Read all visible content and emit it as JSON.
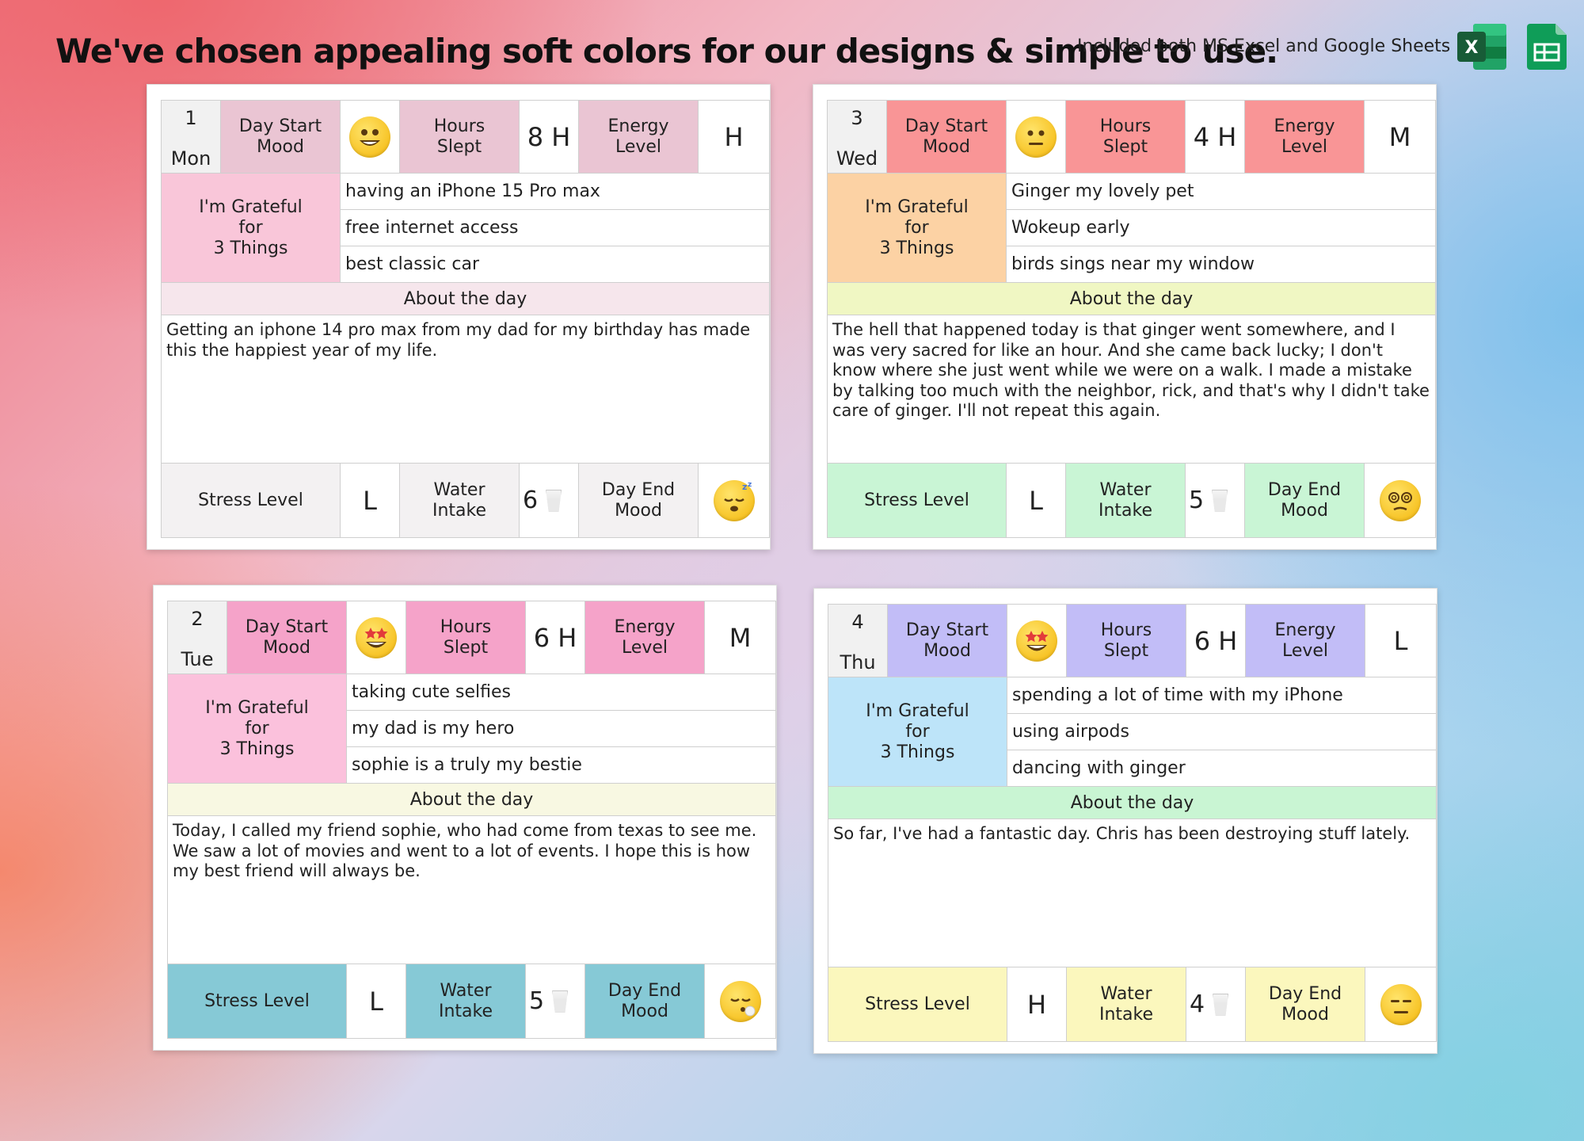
{
  "headline": "We've chosen appealing soft colors for our designs & simple to use.",
  "included_text": "Included both MS Excel and Google Sheets",
  "icons": {
    "excel": "microsoft-excel-icon",
    "sheets": "google-sheets-icon"
  },
  "labels": {
    "day_start_mood": "Day Start\nMood",
    "hours_slept": "Hours\nSlept",
    "energy_level": "Energy\nLevel",
    "grateful": "I'm Grateful\nfor\n3 Things",
    "about": "About the day",
    "stress_level": "Stress Level",
    "water_intake": "Water\nIntake",
    "day_end_mood": "Day End\nMood"
  },
  "cards": [
    {
      "day_number": "1",
      "day_name": "Mon",
      "start_mood": "smiling-face",
      "hours_slept": "8 H",
      "energy": "H",
      "grateful": [
        "having an iPhone 15 Pro max",
        "free internet access",
        "best classic car"
      ],
      "about_text": "Getting an iphone 14 pro max from my dad for my birthday has made this the happiest year of my life.",
      "stress": "L",
      "water": "6",
      "end_mood": "sleeping-face",
      "colors": {
        "header": "#eac5d3",
        "grateful": "#f9c6d9",
        "about": "#f6e6ec",
        "footer": "#f3f1f2"
      }
    },
    {
      "day_number": "3",
      "day_name": "Wed",
      "start_mood": "neutral-face",
      "hours_slept": "4 H",
      "energy": "M",
      "grateful": [
        "Ginger my lovely pet",
        "Wokeup early",
        "birds sings near my window"
      ],
      "about_text": "The hell that happened today is that ginger went somewhere, and I was very sacred for like an hour. And she came back lucky; I don't know where she just went while we were on a walk. I made a mistake by talking too much with the neighbor, rick, and that's why I didn't take care of ginger. I'll not repeat this again.",
      "stress": "L",
      "water": "5",
      "end_mood": "dizzy-face",
      "colors": {
        "header": "#f99596",
        "grateful": "#fcd2a4",
        "about": "#f0f7c3",
        "footer": "#c9f5d5"
      }
    },
    {
      "day_number": "2",
      "day_name": "Tue",
      "start_mood": "star-struck-face",
      "hours_slept": "6 H",
      "energy": "M",
      "grateful": [
        "taking cute selfies",
        "my dad is my hero",
        "sophie is a truly my bestie"
      ],
      "about_text": "Today, I called my friend sophie, who had come from texas to see me. We saw a lot of movies and went to a lot of events. I hope this is how my best friend will always be.",
      "stress": "L",
      "water": "5",
      "end_mood": "exhaling-face",
      "colors": {
        "header": "#f5a3c9",
        "grateful": "#fbc1dc",
        "about": "#f8f8e2",
        "footer": "#86c9d6"
      }
    },
    {
      "day_number": "4",
      "day_name": "Thu",
      "start_mood": "star-struck-face",
      "hours_slept": "6 H",
      "energy": "L",
      "grateful": [
        "spending a lot of time with my iPhone",
        "using airpods",
        "dancing with ginger"
      ],
      "about_text": "So far, I've had a fantastic day. Chris has been destroying stuff lately.",
      "stress": "H",
      "water": "4",
      "end_mood": "expressionless-face",
      "colors": {
        "header": "#c2bdf7",
        "grateful": "#bde4f9",
        "about": "#c9f5d3",
        "footer": "#fbf7bd"
      }
    }
  ]
}
